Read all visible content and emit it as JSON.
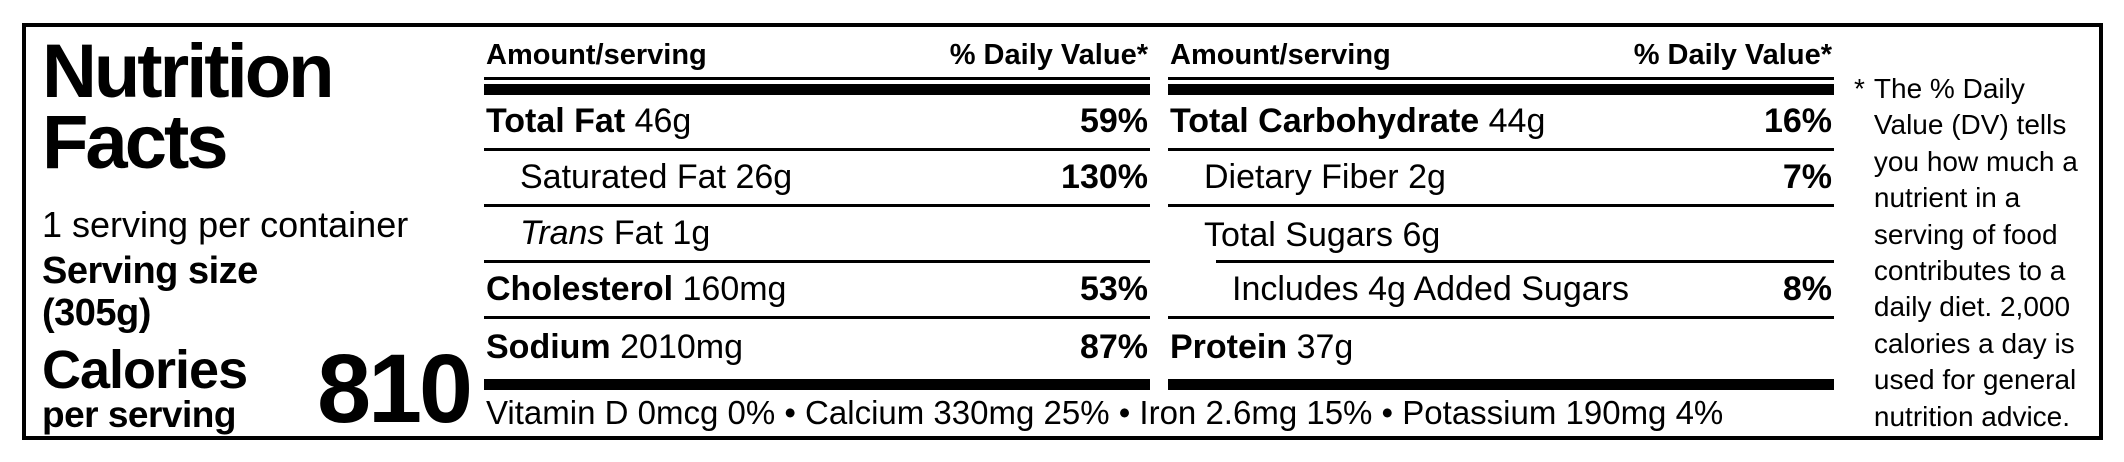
{
  "label": {
    "title": "Nutrition Facts",
    "servings_per_container": "1 serving per container",
    "serving_size_label": "Serving size",
    "serving_size_value": "(305g)",
    "calories_label": "Calories",
    "calories_subtitle": "per serving",
    "calories_value": "810"
  },
  "columns": [
    {
      "header": {
        "amount": "Amount/serving",
        "daily_value": "% Daily Value*"
      },
      "rows": [
        {
          "name": "Total Fat",
          "amount": "46g",
          "dv": "59%"
        },
        {
          "name": "Saturated Fat",
          "amount": "26g",
          "dv": "130%"
        },
        {
          "name": "Trans",
          "name_rest": "Fat",
          "amount": "1g",
          "dv": ""
        },
        {
          "name": "Cholesterol",
          "amount": "160mg",
          "dv": "53%"
        },
        {
          "name": "Sodium",
          "amount": "2010mg",
          "dv": "87%"
        }
      ]
    },
    {
      "header": {
        "amount": "Amount/serving",
        "daily_value": "% Daily Value*"
      },
      "rows": [
        {
          "name": "Total Carbohydrate",
          "amount": "44g",
          "dv": "16%"
        },
        {
          "name": "Dietary Fiber",
          "amount": "2g",
          "dv": "7%"
        },
        {
          "name": "Total Sugars",
          "amount": "6g",
          "dv": ""
        },
        {
          "name": "Includes 4g Added Sugars",
          "amount": "",
          "dv": "8%"
        },
        {
          "name": "Protein",
          "amount": "37g",
          "dv": ""
        }
      ]
    }
  ],
  "micronutrients": "Vitamin D 0mcg 0% • Calcium 330mg 25% • Iron 2.6mg 15% • Potassium 190mg 4%",
  "footnote": {
    "marker": "*",
    "text": "The % Daily Value (DV) tells you how much a nutrient in a serving of food contributes to a daily diet. 2,000 calories a day is used for general nutrition advice."
  },
  "colors": {
    "ink": "#000000",
    "background": "#ffffff"
  }
}
